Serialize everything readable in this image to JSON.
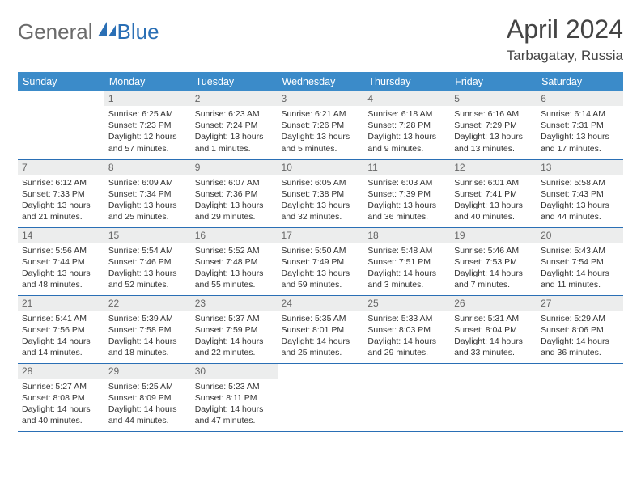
{
  "brand": {
    "part1": "General",
    "part2": "Blue"
  },
  "title": "April 2024",
  "location": "Tarbagatay, Russia",
  "colors": {
    "header_bg": "#3b8bc9",
    "header_text": "#ffffff",
    "brand_gray": "#6b6b6b",
    "brand_blue": "#2a6fb5",
    "daynum_bg": "#eceded",
    "row_border": "#2a6fb5"
  },
  "day_names": [
    "Sunday",
    "Monday",
    "Tuesday",
    "Wednesday",
    "Thursday",
    "Friday",
    "Saturday"
  ],
  "weeks": [
    [
      null,
      {
        "n": "1",
        "sr": "6:25 AM",
        "ss": "7:23 PM",
        "dl": "12 hours and 57 minutes."
      },
      {
        "n": "2",
        "sr": "6:23 AM",
        "ss": "7:24 PM",
        "dl": "13 hours and 1 minutes."
      },
      {
        "n": "3",
        "sr": "6:21 AM",
        "ss": "7:26 PM",
        "dl": "13 hours and 5 minutes."
      },
      {
        "n": "4",
        "sr": "6:18 AM",
        "ss": "7:28 PM",
        "dl": "13 hours and 9 minutes."
      },
      {
        "n": "5",
        "sr": "6:16 AM",
        "ss": "7:29 PM",
        "dl": "13 hours and 13 minutes."
      },
      {
        "n": "6",
        "sr": "6:14 AM",
        "ss": "7:31 PM",
        "dl": "13 hours and 17 minutes."
      }
    ],
    [
      {
        "n": "7",
        "sr": "6:12 AM",
        "ss": "7:33 PM",
        "dl": "13 hours and 21 minutes."
      },
      {
        "n": "8",
        "sr": "6:09 AM",
        "ss": "7:34 PM",
        "dl": "13 hours and 25 minutes."
      },
      {
        "n": "9",
        "sr": "6:07 AM",
        "ss": "7:36 PM",
        "dl": "13 hours and 29 minutes."
      },
      {
        "n": "10",
        "sr": "6:05 AM",
        "ss": "7:38 PM",
        "dl": "13 hours and 32 minutes."
      },
      {
        "n": "11",
        "sr": "6:03 AM",
        "ss": "7:39 PM",
        "dl": "13 hours and 36 minutes."
      },
      {
        "n": "12",
        "sr": "6:01 AM",
        "ss": "7:41 PM",
        "dl": "13 hours and 40 minutes."
      },
      {
        "n": "13",
        "sr": "5:58 AM",
        "ss": "7:43 PM",
        "dl": "13 hours and 44 minutes."
      }
    ],
    [
      {
        "n": "14",
        "sr": "5:56 AM",
        "ss": "7:44 PM",
        "dl": "13 hours and 48 minutes."
      },
      {
        "n": "15",
        "sr": "5:54 AM",
        "ss": "7:46 PM",
        "dl": "13 hours and 52 minutes."
      },
      {
        "n": "16",
        "sr": "5:52 AM",
        "ss": "7:48 PM",
        "dl": "13 hours and 55 minutes."
      },
      {
        "n": "17",
        "sr": "5:50 AM",
        "ss": "7:49 PM",
        "dl": "13 hours and 59 minutes."
      },
      {
        "n": "18",
        "sr": "5:48 AM",
        "ss": "7:51 PM",
        "dl": "14 hours and 3 minutes."
      },
      {
        "n": "19",
        "sr": "5:46 AM",
        "ss": "7:53 PM",
        "dl": "14 hours and 7 minutes."
      },
      {
        "n": "20",
        "sr": "5:43 AM",
        "ss": "7:54 PM",
        "dl": "14 hours and 11 minutes."
      }
    ],
    [
      {
        "n": "21",
        "sr": "5:41 AM",
        "ss": "7:56 PM",
        "dl": "14 hours and 14 minutes."
      },
      {
        "n": "22",
        "sr": "5:39 AM",
        "ss": "7:58 PM",
        "dl": "14 hours and 18 minutes."
      },
      {
        "n": "23",
        "sr": "5:37 AM",
        "ss": "7:59 PM",
        "dl": "14 hours and 22 minutes."
      },
      {
        "n": "24",
        "sr": "5:35 AM",
        "ss": "8:01 PM",
        "dl": "14 hours and 25 minutes."
      },
      {
        "n": "25",
        "sr": "5:33 AM",
        "ss": "8:03 PM",
        "dl": "14 hours and 29 minutes."
      },
      {
        "n": "26",
        "sr": "5:31 AM",
        "ss": "8:04 PM",
        "dl": "14 hours and 33 minutes."
      },
      {
        "n": "27",
        "sr": "5:29 AM",
        "ss": "8:06 PM",
        "dl": "14 hours and 36 minutes."
      }
    ],
    [
      {
        "n": "28",
        "sr": "5:27 AM",
        "ss": "8:08 PM",
        "dl": "14 hours and 40 minutes."
      },
      {
        "n": "29",
        "sr": "5:25 AM",
        "ss": "8:09 PM",
        "dl": "14 hours and 44 minutes."
      },
      {
        "n": "30",
        "sr": "5:23 AM",
        "ss": "8:11 PM",
        "dl": "14 hours and 47 minutes."
      },
      null,
      null,
      null,
      null
    ]
  ],
  "labels": {
    "sunrise": "Sunrise:",
    "sunset": "Sunset:",
    "daylight": "Daylight:"
  }
}
